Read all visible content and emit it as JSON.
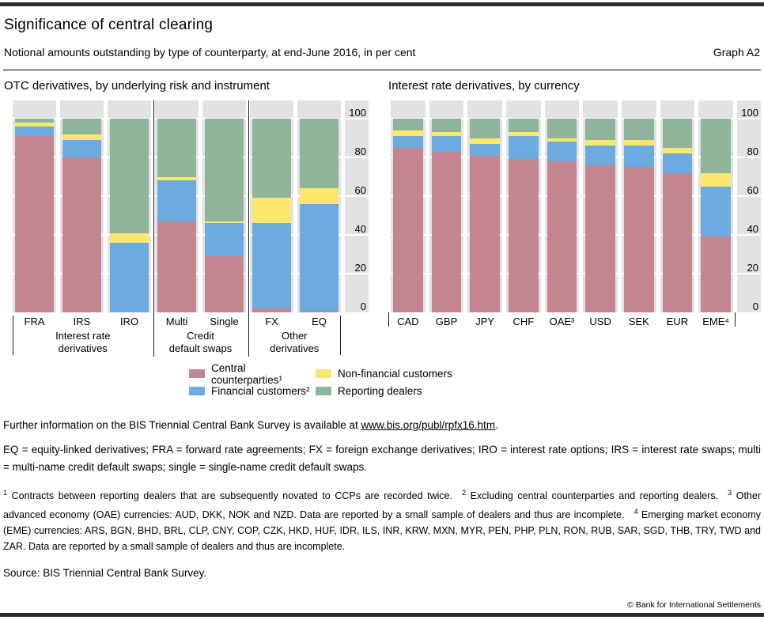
{
  "header": {
    "title": "Significance of central clearing",
    "subtitle": "Notional amounts outstanding by type of counterparty, at end-June 2016, in per cent",
    "graph_label": "Graph A2"
  },
  "colors": {
    "red": "#c38691",
    "blue": "#6babdf",
    "yellow": "#fbe76d",
    "green": "#8eb499",
    "plot_bg": "#e2e2e2",
    "grid": "#ffffff",
    "rule": "#000000"
  },
  "chart_data": [
    {
      "type": "bar",
      "stacked": true,
      "title": "OTC derivatives, by underlying risk and instrument",
      "categories": [
        "FRA",
        "IRS",
        "IRO",
        "Multi",
        "Single",
        "FX",
        "EQ"
      ],
      "groups": [
        {
          "label": "Interest rate\nderivatives",
          "span": 3
        },
        {
          "label": "Credit\ndefault swaps",
          "span": 2
        },
        {
          "label": "Other\nderivatives",
          "span": 2
        }
      ],
      "series": [
        {
          "name": "Central counterparties",
          "color_key": "red",
          "values": [
            91,
            80,
            0,
            47,
            29,
            2,
            1
          ]
        },
        {
          "name": "Financial customers",
          "color_key": "blue",
          "values": [
            5,
            9,
            36,
            21,
            17,
            44,
            55
          ]
        },
        {
          "name": "Non-financial customers",
          "color_key": "yellow",
          "values": [
            2,
            3,
            5,
            2,
            1,
            13,
            8
          ]
        },
        {
          "name": "Reporting dealers",
          "color_key": "green",
          "values": [
            2,
            8,
            59,
            30,
            53,
            41,
            36
          ]
        }
      ],
      "ylim": [
        0,
        100
      ],
      "yticks": [
        0,
        20,
        40,
        60,
        80,
        100
      ],
      "axis_side": "right",
      "grid": true
    },
    {
      "type": "bar",
      "stacked": true,
      "title": "Interest rate derivatives, by currency",
      "categories": [
        "CAD",
        "GBP",
        "JPY",
        "CHF",
        "OAE³",
        "USD",
        "SEK",
        "EUR",
        "EME⁴"
      ],
      "groups": [],
      "series": [
        {
          "name": "Central counterparties",
          "color_key": "red",
          "values": [
            85,
            83,
            81,
            79,
            78,
            76,
            75,
            72,
            39
          ]
        },
        {
          "name": "Financial customers",
          "color_key": "blue",
          "values": [
            6,
            8,
            6,
            12,
            10,
            10,
            11,
            10,
            26
          ]
        },
        {
          "name": "Non-financial customers",
          "color_key": "yellow",
          "values": [
            3,
            2,
            3,
            2,
            2,
            3,
            3,
            3,
            7
          ]
        },
        {
          "name": "Reporting dealers",
          "color_key": "green",
          "values": [
            6,
            7,
            10,
            7,
            10,
            11,
            11,
            15,
            28
          ]
        }
      ],
      "ylim": [
        0,
        100
      ],
      "yticks": [
        0,
        20,
        40,
        60,
        80,
        100
      ],
      "axis_side": "right",
      "grid": true
    }
  ],
  "legend": {
    "columns": [
      {
        "items": [
          {
            "label": "Central counterparties¹",
            "color_key": "red"
          },
          {
            "label": "Financial customers²",
            "color_key": "blue"
          }
        ]
      },
      {
        "items": [
          {
            "label": "Non-financial customers",
            "color_key": "yellow"
          },
          {
            "label": "Reporting dealers",
            "color_key": "green"
          }
        ]
      }
    ]
  },
  "info": {
    "prefix": "Further information on the BIS Triennial Central Bank Survey is available at ",
    "link": "www.bis.org/publ/rpfx16.htm",
    "suffix": "."
  },
  "definitions": "EQ = equity-linked derivatives; FRA = forward rate agreements; FX = foreign exchange derivatives; IRO = interest rate options; IRS = interest rate swaps; multi = multi-name credit default swaps; single = single-name credit default swaps.",
  "footnotes": [
    {
      "marker": "1",
      "text": "Contracts between reporting dealers that are subsequently novated to CCPs are recorded twice."
    },
    {
      "marker": "2",
      "text": "Excluding central counterparties and reporting dealers."
    },
    {
      "marker": "3",
      "text": "Other advanced economy (OAE) currencies: AUD, DKK, NOK and NZD. Data are reported by a small sample of dealers and thus are incomplete."
    },
    {
      "marker": "4",
      "text": "Emerging market economy (EME) currencies: ARS, BGN, BHD, BRL, CLP, CNY, COP, CZK, HKD, HUF, IDR, ILS, INR, KRW, MXN, MYR, PEN, PHP, PLN, RON, RUB, SAR, SGD, THB, TRY, TWD and ZAR. Data are reported by a small sample of dealers and thus are incomplete."
    }
  ],
  "source": "Source: BIS Triennial Central Bank Survey.",
  "copyright": "© Bank for International Settlements"
}
